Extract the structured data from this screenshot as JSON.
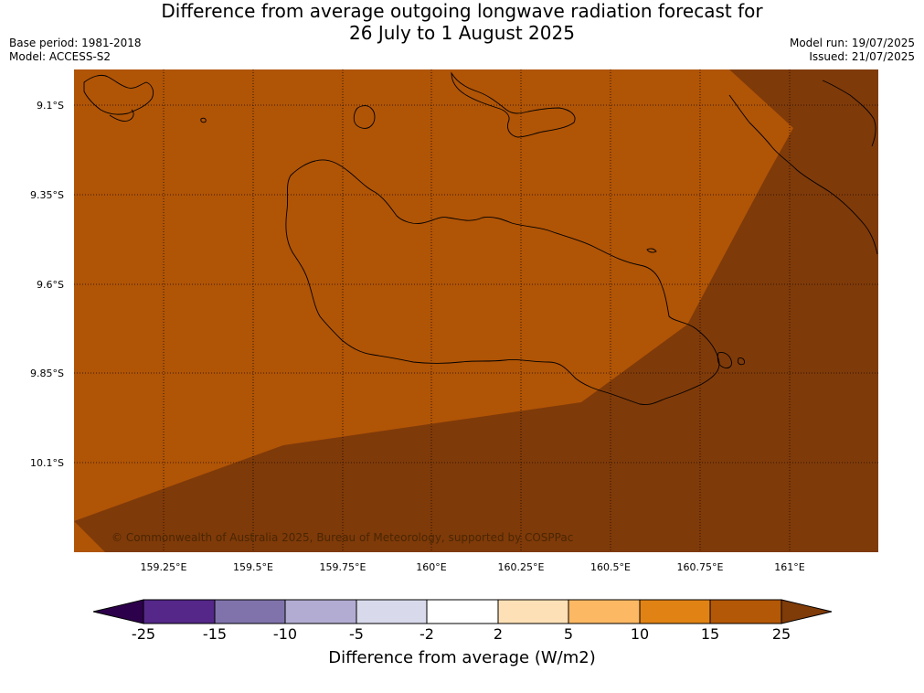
{
  "title_line1": "Difference from average outgoing longwave radiation forecast for",
  "title_line2": "26 July to 1 August 2025",
  "meta_left": {
    "base_period": "Base period: 1981-2018",
    "model": "Model: ACCESS-S2"
  },
  "meta_right": {
    "model_run": "Model run: 19/07/2025",
    "issued": "Issued: 21/07/2025"
  },
  "map": {
    "lat_labels": [
      "9.1°S",
      "9.35°S",
      "9.6°S",
      "9.85°S",
      "10.1°S"
    ],
    "lon_labels": [
      "159.25°E",
      "159.5°E",
      "159.75°E",
      "160°E",
      "160.25°E",
      "160.5°E",
      "160.75°E",
      "161°E"
    ],
    "copyright": "© Commonwealth of Australia 2025, Bureau of Meteorology, supported by COSPPac",
    "fill_colors": {
      "base": "#b05406",
      "dark": "#7f3a09"
    }
  },
  "colorbar": {
    "title": "Difference from average (W/m2)",
    "ticks": [
      "-25",
      "-15",
      "-10",
      "-5",
      "-2",
      "2",
      "5",
      "10",
      "15",
      "25"
    ],
    "colors": [
      "#542788",
      "#8073ac",
      "#b2abd2",
      "#d8daeb",
      "#ffffff",
      "#fee0b6",
      "#fdb863",
      "#e08214",
      "#b35806"
    ],
    "under_color": "#2d004b",
    "over_color": "#7f3b08"
  }
}
